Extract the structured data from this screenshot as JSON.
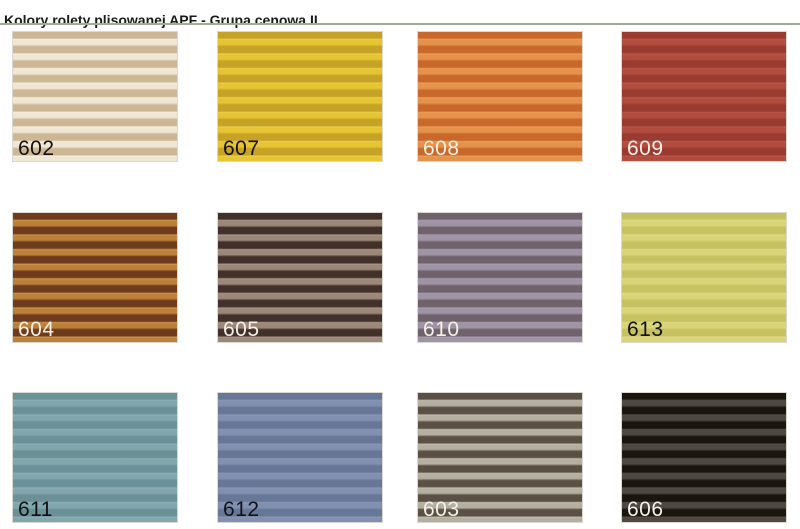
{
  "page": {
    "title": "Kolory rolety plisowanej APF - Grupa cenowa II",
    "divider_color": "#9fae92",
    "background_color": "#ffffff"
  },
  "swatches": [
    {
      "code": "602",
      "light": "#efe7d3",
      "dark": "#cdb694",
      "highlight": "#f6f0e2",
      "label_color": "#111111"
    },
    {
      "code": "607",
      "light": "#e6c532",
      "dark": "#c6a226",
      "highlight": "#edd04b",
      "label_color": "#111111"
    },
    {
      "code": "608",
      "light": "#e5934a",
      "dark": "#c9682b",
      "highlight": "#ec9f58",
      "label_color": "#f4f1e8"
    },
    {
      "code": "609",
      "light": "#b24c3e",
      "dark": "#9a3b31",
      "highlight": "#ba574a",
      "label_color": "#f4f1e8"
    },
    {
      "code": "604",
      "light": "#bc8038",
      "dark": "#6e3c1d",
      "highlight": "#d0964e",
      "label_color": "#f4f1e8"
    },
    {
      "code": "605",
      "light": "#9c8878",
      "dark": "#42302a",
      "highlight": "#aa9888",
      "label_color": "#f4f1e8"
    },
    {
      "code": "610",
      "light": "#9e94a6",
      "dark": "#6f626a",
      "highlight": "#a89eb0",
      "label_color": "#f4f1e8"
    },
    {
      "code": "613",
      "light": "#d8d478",
      "dark": "#c6c161",
      "highlight": "#dfdb85",
      "label_color": "#111111"
    },
    {
      "code": "611",
      "light": "#81a7ac",
      "dark": "#6a9198",
      "highlight": "#8cb1b5",
      "label_color": "#111111"
    },
    {
      "code": "612",
      "light": "#8090ae",
      "dark": "#667797",
      "highlight": "#8a99b5",
      "label_color": "#101418"
    },
    {
      "code": "603",
      "light": "#b5afa2",
      "dark": "#5a5044",
      "highlight": "#c4beb2",
      "label_color": "#f4f1e8"
    },
    {
      "code": "606",
      "light": "#4d4840",
      "dark": "#1a160f",
      "highlight": "#555046",
      "label_color": "#f4f1e8"
    }
  ]
}
